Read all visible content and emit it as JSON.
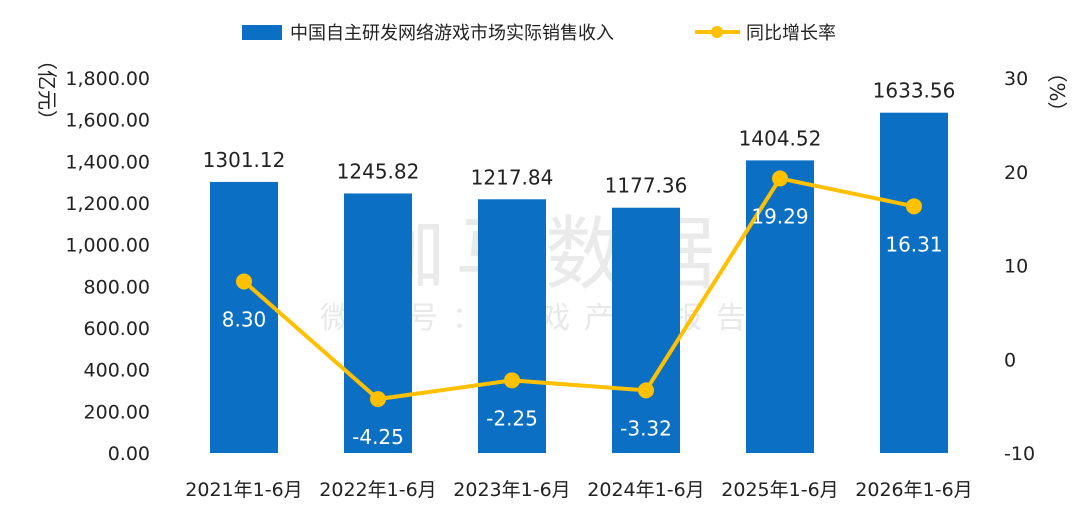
{
  "watermark": {
    "main": "伽马数据",
    "sub": "微信号：游戏产业报告"
  },
  "chart_data": {
    "type": "bar+line",
    "categories": [
      "2021年1-6月",
      "2022年1-6月",
      "2023年1-6月",
      "2024年1-6月",
      "2025年1-6月",
      "2026年1-6月"
    ],
    "series": [
      {
        "name": "中国自主研发网络游戏市场实际销售收入",
        "type": "bar",
        "axis": "left",
        "values": [
          1301.12,
          1245.82,
          1217.84,
          1177.36,
          1404.52,
          1633.56
        ],
        "labels": [
          "1301.12",
          "1245.82",
          "1217.84",
          "1177.36",
          "1404.52",
          "1633.56"
        ],
        "color": "#0b70c3"
      },
      {
        "name": "同比增长率",
        "type": "line",
        "axis": "right",
        "values": [
          8.3,
          -4.25,
          -2.25,
          -3.32,
          19.29,
          16.31
        ],
        "labels": [
          "8.30",
          "-4.25",
          "-2.25",
          "-3.32",
          "19.29",
          "16.31"
        ],
        "color": "#ffc000"
      }
    ],
    "y_left": {
      "label": "（亿元）",
      "min": 0,
      "max": 1800,
      "step": 200,
      "ticks": [
        "0.00",
        "200.00",
        "400.00",
        "600.00",
        "800.00",
        "1,000.00",
        "1,200.00",
        "1,400.00",
        "1,600.00",
        "1,800.00"
      ]
    },
    "y_right": {
      "label": "（%）",
      "min": -10,
      "max": 30,
      "step": 10,
      "ticks": [
        "-10",
        "0",
        "10",
        "20",
        "30"
      ]
    },
    "legend": {
      "position": "top-center"
    },
    "grid": false
  }
}
